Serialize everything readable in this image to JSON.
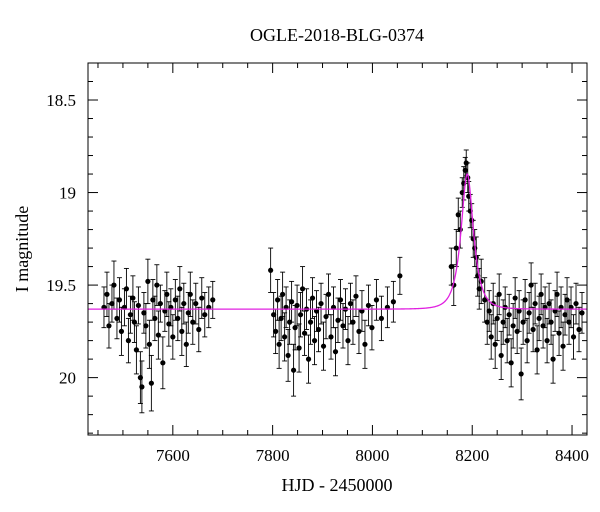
{
  "chart_data": {
    "type": "scatter",
    "title": "OGLE-2018-BLG-0374",
    "xlabel": "HJD - 2450000",
    "ylabel": "I magnitude",
    "xlim": [
      7430,
      8430
    ],
    "ylim": [
      20.31,
      18.3
    ],
    "y_inverted": true,
    "x_ticks": [
      7600,
      7800,
      8000,
      8200,
      8400
    ],
    "x_tick_labels": [
      "7600",
      "7800",
      "8000",
      "8200",
      "8400"
    ],
    "y_ticks": [
      18.5,
      19,
      19.5,
      20
    ],
    "y_tick_labels": [
      "18.5",
      "19",
      "19.5",
      "20"
    ],
    "grid": false,
    "colors": {
      "points": "#000000",
      "model": "#e020e0"
    },
    "model": {
      "baseline_mag": 19.63,
      "peak_mag": 18.9,
      "t0": 8190,
      "tE": 20
    },
    "series": [
      {
        "points": [
          {
            "x": 7462,
            "y": 19.62,
            "e": 0.11
          },
          {
            "x": 7468,
            "y": 19.55,
            "e": 0.12
          },
          {
            "x": 7472,
            "y": 19.72,
            "e": 0.12
          },
          {
            "x": 7478,
            "y": 19.6,
            "e": 0.1
          },
          {
            "x": 7482,
            "y": 19.5,
            "e": 0.13
          },
          {
            "x": 7488,
            "y": 19.68,
            "e": 0.11
          },
          {
            "x": 7493,
            "y": 19.58,
            "e": 0.12
          },
          {
            "x": 7497,
            "y": 19.75,
            "e": 0.13
          },
          {
            "x": 7503,
            "y": 19.62,
            "e": 0.1
          },
          {
            "x": 7507,
            "y": 19.52,
            "e": 0.11
          },
          {
            "x": 7511,
            "y": 19.8,
            "e": 0.12
          },
          {
            "x": 7515,
            "y": 19.66,
            "e": 0.1
          },
          {
            "x": 7520,
            "y": 19.57,
            "e": 0.12
          },
          {
            "x": 7523,
            "y": 19.7,
            "e": 0.11
          },
          {
            "x": 7527,
            "y": 19.85,
            "e": 0.13
          },
          {
            "x": 7531,
            "y": 19.61,
            "e": 0.1
          },
          {
            "x": 7535,
            "y": 20.0,
            "e": 0.14
          },
          {
            "x": 7538,
            "y": 20.05,
            "e": 0.14
          },
          {
            "x": 7542,
            "y": 19.65,
            "e": 0.11
          },
          {
            "x": 7546,
            "y": 19.72,
            "e": 0.12
          },
          {
            "x": 7550,
            "y": 19.48,
            "e": 0.12
          },
          {
            "x": 7553,
            "y": 19.82,
            "e": 0.13
          },
          {
            "x": 7557,
            "y": 20.03,
            "e": 0.15
          },
          {
            "x": 7560,
            "y": 19.58,
            "e": 0.11
          },
          {
            "x": 7564,
            "y": 19.68,
            "e": 0.12
          },
          {
            "x": 7568,
            "y": 19.5,
            "e": 0.11
          },
          {
            "x": 7571,
            "y": 19.77,
            "e": 0.13
          },
          {
            "x": 7575,
            "y": 19.6,
            "e": 0.1
          },
          {
            "x": 7580,
            "y": 19.92,
            "e": 0.14
          },
          {
            "x": 7584,
            "y": 19.64,
            "e": 0.11
          },
          {
            "x": 7588,
            "y": 19.55,
            "e": 0.12
          },
          {
            "x": 7592,
            "y": 19.71,
            "e": 0.12
          },
          {
            "x": 7596,
            "y": 19.62,
            "e": 0.1
          },
          {
            "x": 7600,
            "y": 19.78,
            "e": 0.12
          },
          {
            "x": 7605,
            "y": 19.58,
            "e": 0.11
          },
          {
            "x": 7610,
            "y": 19.68,
            "e": 0.12
          },
          {
            "x": 7614,
            "y": 19.52,
            "e": 0.12
          },
          {
            "x": 7618,
            "y": 19.75,
            "e": 0.13
          },
          {
            "x": 7622,
            "y": 19.6,
            "e": 0.11
          },
          {
            "x": 7627,
            "y": 19.82,
            "e": 0.12
          },
          {
            "x": 7631,
            "y": 19.65,
            "e": 0.11
          },
          {
            "x": 7635,
            "y": 19.55,
            "e": 0.12
          },
          {
            "x": 7640,
            "y": 19.7,
            "e": 0.12
          },
          {
            "x": 7646,
            "y": 19.6,
            "e": 0.11
          },
          {
            "x": 7652,
            "y": 19.74,
            "e": 0.12
          },
          {
            "x": 7658,
            "y": 19.57,
            "e": 0.11
          },
          {
            "x": 7664,
            "y": 19.66,
            "e": 0.12
          },
          {
            "x": 7672,
            "y": 19.62,
            "e": 0.11
          },
          {
            "x": 7680,
            "y": 19.58,
            "e": 0.1
          },
          {
            "x": 7796,
            "y": 19.42,
            "e": 0.12
          },
          {
            "x": 7802,
            "y": 19.66,
            "e": 0.12
          },
          {
            "x": 7806,
            "y": 19.75,
            "e": 0.12
          },
          {
            "x": 7810,
            "y": 19.58,
            "e": 0.11
          },
          {
            "x": 7813,
            "y": 19.82,
            "e": 0.13
          },
          {
            "x": 7817,
            "y": 19.68,
            "e": 0.12
          },
          {
            "x": 7820,
            "y": 19.55,
            "e": 0.12
          },
          {
            "x": 7824,
            "y": 19.78,
            "e": 0.13
          },
          {
            "x": 7827,
            "y": 19.62,
            "e": 0.11
          },
          {
            "x": 7831,
            "y": 19.88,
            "e": 0.14
          },
          {
            "x": 7834,
            "y": 19.7,
            "e": 0.12
          },
          {
            "x": 7838,
            "y": 19.59,
            "e": 0.11
          },
          {
            "x": 7842,
            "y": 19.96,
            "e": 0.14
          },
          {
            "x": 7845,
            "y": 19.73,
            "e": 0.12
          },
          {
            "x": 7849,
            "y": 19.61,
            "e": 0.11
          },
          {
            "x": 7853,
            "y": 19.84,
            "e": 0.13
          },
          {
            "x": 7856,
            "y": 19.66,
            "e": 0.12
          },
          {
            "x": 7860,
            "y": 19.52,
            "e": 0.12
          },
          {
            "x": 7864,
            "y": 19.76,
            "e": 0.12
          },
          {
            "x": 7868,
            "y": 19.63,
            "e": 0.11
          },
          {
            "x": 7872,
            "y": 19.9,
            "e": 0.13
          },
          {
            "x": 7876,
            "y": 19.7,
            "e": 0.12
          },
          {
            "x": 7880,
            "y": 19.57,
            "e": 0.11
          },
          {
            "x": 7884,
            "y": 19.8,
            "e": 0.13
          },
          {
            "x": 7888,
            "y": 19.64,
            "e": 0.11
          },
          {
            "x": 7892,
            "y": 19.74,
            "e": 0.12
          },
          {
            "x": 7897,
            "y": 19.6,
            "e": 0.11
          },
          {
            "x": 7902,
            "y": 19.83,
            "e": 0.13
          },
          {
            "x": 7907,
            "y": 19.67,
            "e": 0.12
          },
          {
            "x": 7912,
            "y": 19.55,
            "e": 0.11
          },
          {
            "x": 7917,
            "y": 19.78,
            "e": 0.12
          },
          {
            "x": 7922,
            "y": 19.62,
            "e": 0.11
          },
          {
            "x": 7926,
            "y": 19.86,
            "e": 0.13
          },
          {
            "x": 7931,
            "y": 19.69,
            "e": 0.12
          },
          {
            "x": 7936,
            "y": 19.58,
            "e": 0.11
          },
          {
            "x": 7941,
            "y": 19.72,
            "e": 0.12
          },
          {
            "x": 7946,
            "y": 19.63,
            "e": 0.11
          },
          {
            "x": 7951,
            "y": 19.8,
            "e": 0.13
          },
          {
            "x": 7956,
            "y": 19.6,
            "e": 0.11
          },
          {
            "x": 7961,
            "y": 19.7,
            "e": 0.12
          },
          {
            "x": 7967,
            "y": 19.56,
            "e": 0.11
          },
          {
            "x": 7973,
            "y": 19.75,
            "e": 0.12
          },
          {
            "x": 7979,
            "y": 19.64,
            "e": 0.11
          },
          {
            "x": 7985,
            "y": 19.82,
            "e": 0.13
          },
          {
            "x": 7992,
            "y": 19.61,
            "e": 0.11
          },
          {
            "x": 7999,
            "y": 19.73,
            "e": 0.12
          },
          {
            "x": 8008,
            "y": 19.58,
            "e": 0.11
          },
          {
            "x": 8018,
            "y": 19.68,
            "e": 0.12
          },
          {
            "x": 8030,
            "y": 19.62,
            "e": 0.11
          },
          {
            "x": 8042,
            "y": 19.59,
            "e": 0.11
          },
          {
            "x": 8055,
            "y": 19.45,
            "e": 0.1
          },
          {
            "x": 8158,
            "y": 19.4,
            "e": 0.1
          },
          {
            "x": 8163,
            "y": 19.5,
            "e": 0.11
          },
          {
            "x": 8168,
            "y": 19.3,
            "e": 0.1
          },
          {
            "x": 8172,
            "y": 19.12,
            "e": 0.09
          },
          {
            "x": 8176,
            "y": 19.2,
            "e": 0.1
          },
          {
            "x": 8180,
            "y": 19.0,
            "e": 0.08
          },
          {
            "x": 8183,
            "y": 18.95,
            "e": 0.09
          },
          {
            "x": 8186,
            "y": 18.88,
            "e": 0.07
          },
          {
            "x": 8188,
            "y": 18.84,
            "e": 0.07
          },
          {
            "x": 8191,
            "y": 18.92,
            "e": 0.08
          },
          {
            "x": 8193,
            "y": 19.02,
            "e": 0.08
          },
          {
            "x": 8196,
            "y": 19.1,
            "e": 0.09
          },
          {
            "x": 8199,
            "y": 19.15,
            "e": 0.09
          },
          {
            "x": 8202,
            "y": 19.25,
            "e": 0.1
          },
          {
            "x": 8205,
            "y": 19.3,
            "e": 0.1
          },
          {
            "x": 8208,
            "y": 19.35,
            "e": 0.11
          },
          {
            "x": 8211,
            "y": 19.45,
            "e": 0.11
          },
          {
            "x": 8214,
            "y": 19.52,
            "e": 0.11
          },
          {
            "x": 8218,
            "y": 19.48,
            "e": 0.12
          },
          {
            "x": 8225,
            "y": 19.58,
            "e": 0.12
          },
          {
            "x": 8230,
            "y": 19.7,
            "e": 0.12
          },
          {
            "x": 8234,
            "y": 19.64,
            "e": 0.11
          },
          {
            "x": 8238,
            "y": 19.78,
            "e": 0.12
          },
          {
            "x": 8242,
            "y": 19.6,
            "e": 0.11
          },
          {
            "x": 8246,
            "y": 19.82,
            "e": 0.13
          },
          {
            "x": 8250,
            "y": 19.68,
            "e": 0.12
          },
          {
            "x": 8254,
            "y": 19.55,
            "e": 0.11
          },
          {
            "x": 8258,
            "y": 19.88,
            "e": 0.13
          },
          {
            "x": 8262,
            "y": 19.7,
            "e": 0.12
          },
          {
            "x": 8266,
            "y": 19.62,
            "e": 0.11
          },
          {
            "x": 8270,
            "y": 19.8,
            "e": 0.12
          },
          {
            "x": 8274,
            "y": 19.66,
            "e": 0.11
          },
          {
            "x": 8278,
            "y": 19.92,
            "e": 0.13
          },
          {
            "x": 8282,
            "y": 19.72,
            "e": 0.12
          },
          {
            "x": 8286,
            "y": 19.57,
            "e": 0.11
          },
          {
            "x": 8290,
            "y": 19.75,
            "e": 0.12
          },
          {
            "x": 8294,
            "y": 19.64,
            "e": 0.11
          },
          {
            "x": 8298,
            "y": 19.98,
            "e": 0.14
          },
          {
            "x": 8302,
            "y": 19.7,
            "e": 0.12
          },
          {
            "x": 8306,
            "y": 19.58,
            "e": 0.11
          },
          {
            "x": 8310,
            "y": 19.8,
            "e": 0.12
          },
          {
            "x": 8314,
            "y": 19.65,
            "e": 0.11
          },
          {
            "x": 8318,
            "y": 19.5,
            "e": 0.12
          },
          {
            "x": 8322,
            "y": 19.74,
            "e": 0.12
          },
          {
            "x": 8326,
            "y": 19.6,
            "e": 0.11
          },
          {
            "x": 8330,
            "y": 19.85,
            "e": 0.13
          },
          {
            "x": 8334,
            "y": 19.68,
            "e": 0.12
          },
          {
            "x": 8338,
            "y": 19.55,
            "e": 0.11
          },
          {
            "x": 8342,
            "y": 19.72,
            "e": 0.12
          },
          {
            "x": 8346,
            "y": 19.62,
            "e": 0.11
          },
          {
            "x": 8350,
            "y": 19.8,
            "e": 0.12
          },
          {
            "x": 8354,
            "y": 19.6,
            "e": 0.11
          },
          {
            "x": 8358,
            "y": 19.7,
            "e": 0.12
          },
          {
            "x": 8362,
            "y": 19.9,
            "e": 0.13
          },
          {
            "x": 8366,
            "y": 19.64,
            "e": 0.11
          },
          {
            "x": 8370,
            "y": 19.55,
            "e": 0.12
          },
          {
            "x": 8374,
            "y": 19.76,
            "e": 0.12
          },
          {
            "x": 8378,
            "y": 19.62,
            "e": 0.11
          },
          {
            "x": 8382,
            "y": 19.83,
            "e": 0.13
          },
          {
            "x": 8386,
            "y": 19.66,
            "e": 0.11
          },
          {
            "x": 8390,
            "y": 19.58,
            "e": 0.12
          },
          {
            "x": 8394,
            "y": 19.7,
            "e": 0.12
          },
          {
            "x": 8398,
            "y": 19.62,
            "e": 0.11
          },
          {
            "x": 8403,
            "y": 19.78,
            "e": 0.12
          },
          {
            "x": 8408,
            "y": 19.6,
            "e": 0.11
          },
          {
            "x": 8414,
            "y": 19.74,
            "e": 0.12
          },
          {
            "x": 8420,
            "y": 19.65,
            "e": 0.11
          }
        ]
      }
    ]
  }
}
